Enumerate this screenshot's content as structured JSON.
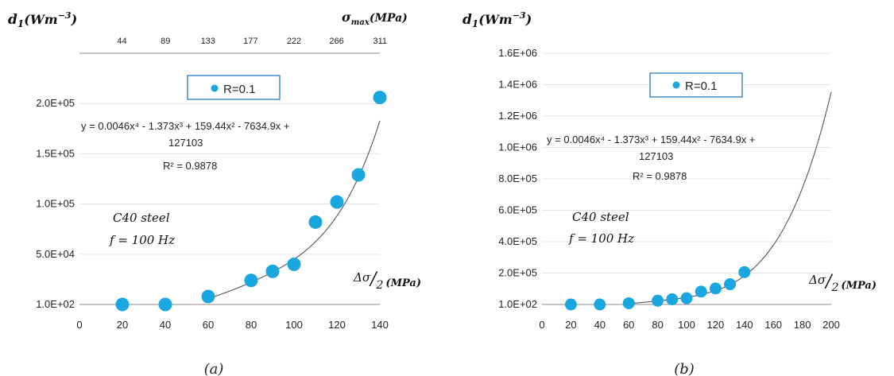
{
  "colors": {
    "marker": "#1aa7e0",
    "legend_border": "#2a78c0",
    "trend": "#555555",
    "axis": "#888888"
  },
  "chart_data": [
    {
      "type": "scatter",
      "caption": "(a)",
      "ylabel": "d1(Wm-3)",
      "y_label_main": "d",
      "y_label_sub": "1",
      "y_label_unit": "(Wm",
      "y_label_exp": "−3",
      "y_label_close": ")",
      "xlabel": "Δσ/2 (MPa)",
      "x_label_delta": "Δσ",
      "x_label_slash": "/",
      "x_label_two": "2",
      "x_label_unit": "(MPa)",
      "x2label": "σmax(MPa)",
      "x2_label_main": "σ",
      "x2_label_sub": "max",
      "x2_label_unit": "(MPa)",
      "xlim": [
        0,
        140
      ],
      "ylim": [
        100,
        250000
      ],
      "xticks": [
        "0",
        "20",
        "40",
        "60",
        "80",
        "100",
        "120",
        "140"
      ],
      "yticks": [
        "1.0E+02",
        "5.0E+04",
        "1.0E+05",
        "1.5E+05",
        "2.0E+05"
      ],
      "top_ticks": [
        "44",
        "89",
        "133",
        "177",
        "222",
        "266",
        "311"
      ],
      "series": [
        {
          "name": "R=0.1",
          "x": [
            20,
            40,
            60,
            80,
            90,
            100,
            110,
            120,
            130,
            140
          ],
          "y": [
            100,
            100,
            8000,
            24000,
            33000,
            40000,
            82000,
            102000,
            129000,
            206000
          ]
        }
      ],
      "trendline": {
        "equation": "y = 0.0046x⁴ - 1.373x³ + 159.44x² - 7634.9x +",
        "equation_cont": "127103",
        "r2": "R² = 0.9878",
        "coefficients": [
          0.0046,
          -1.373,
          159.44,
          -7634.9,
          127103
        ],
        "x_range": [
          60,
          140
        ]
      },
      "annotation_material": "C40 steel",
      "annotation_freq": "f = 100 Hz",
      "legend": "top-center"
    },
    {
      "type": "scatter",
      "caption": "(b)",
      "ylabel": "d1(Wm-3)",
      "y_label_main": "d",
      "y_label_sub": "1",
      "y_label_unit": "(Wm",
      "y_label_exp": "−3",
      "y_label_close": ")",
      "xlabel": "Δσ/2 (MPa)",
      "x_label_delta": "Δσ",
      "x_label_slash": "/",
      "x_label_two": "2",
      "x_label_unit": "(MPa)",
      "xlim": [
        0,
        200
      ],
      "ylim": [
        100,
        1600000
      ],
      "xticks": [
        "0",
        "20",
        "40",
        "60",
        "80",
        "100",
        "120",
        "140",
        "160",
        "180",
        "200"
      ],
      "yticks": [
        "1.0E+02",
        "2.0E+05",
        "4.0E+05",
        "6.0E+05",
        "8.0E+05",
        "1.0E+06",
        "1.2E+06",
        "1.4E+06",
        "1.6E+06"
      ],
      "series": [
        {
          "name": "R=0.1",
          "x": [
            20,
            40,
            60,
            80,
            90,
            100,
            110,
            120,
            130,
            140
          ],
          "y": [
            100,
            100,
            8000,
            24000,
            33000,
            40000,
            82000,
            102000,
            129000,
            206000
          ]
        }
      ],
      "trendline": {
        "equation": "y = 0.0046x⁴ - 1.373x³ + 159.44x² - 7634.9x +",
        "equation_cont": "127103",
        "r2": "R² = 0.9878",
        "coefficients": [
          0.0046,
          -1.373,
          159.44,
          -7634.9,
          127103
        ],
        "x_range": [
          60,
          200
        ]
      },
      "annotation_material": "C40 steel",
      "annotation_freq": "f = 100 Hz",
      "legend": "top-center"
    }
  ]
}
